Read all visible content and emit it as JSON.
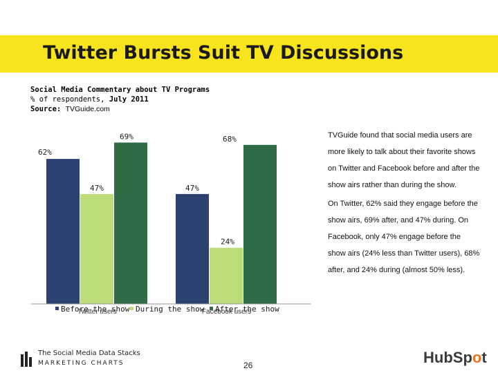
{
  "slide": {
    "title": "Twitter Bursts Suit TV Discussions",
    "subtitle_line1": "Social Media Commentary about TV Programs",
    "subtitle_line2_prefix": "% of respondents,",
    "subtitle_line2_date": "July 2011",
    "source_label": "Source:",
    "source_value": "TVGuide.com",
    "page_number": "26"
  },
  "side_text": {
    "para1": [
      "TVGuide found that social media users are",
      "more likely to talk about their favorite shows",
      "on Twitter and Facebook before and after the",
      "show airs rather than during the show."
    ],
    "para2": [
      "On Twitter, 62% said they engage before the",
      "show airs, 69% after, and 47% during. On",
      "Facebook, only 47% engage before the",
      "show airs (24% less than Twitter users), 68%",
      "after, and 24% during (almost 50% less)."
    ]
  },
  "footer": {
    "logo_line1": "The Social Media Data Stacks",
    "logo_line2": "MARKETING CHARTS",
    "brand_left": "HubSp",
    "brand_dot": "o",
    "brand_right": "t"
  },
  "chart_data": {
    "type": "bar",
    "categories": [
      "Twitter users",
      "Facebook users"
    ],
    "series": [
      {
        "name": "Before the show",
        "values": [
          62,
          47
        ],
        "color": "#2b4170"
      },
      {
        "name": "During the show",
        "values": [
          47,
          24
        ],
        "color": "#bcdc7a"
      },
      {
        "name": "After the show",
        "values": [
          69,
          68
        ],
        "color": "#2f6b45"
      }
    ],
    "data_labels": [
      "62%",
      "47%",
      "69%",
      "47%",
      "24%",
      "68%"
    ],
    "title": "",
    "xlabel": "",
    "ylabel": "",
    "ylim": [
      0,
      70
    ],
    "grid": false,
    "legend_position": "bottom"
  }
}
